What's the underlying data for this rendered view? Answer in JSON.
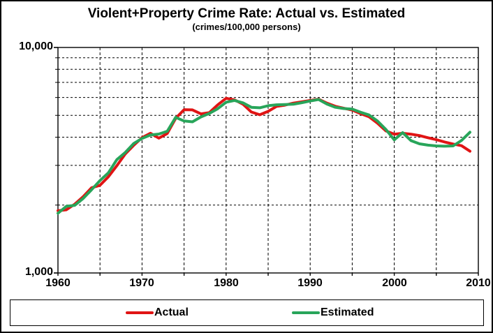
{
  "chart_data": {
    "type": "line",
    "title": "Violent+Property Crime Rate: Actual vs. Estimated",
    "subtitle": "(crimes/100,000 persons)",
    "x": [
      1960,
      1961,
      1962,
      1963,
      1964,
      1965,
      1966,
      1967,
      1968,
      1969,
      1970,
      1971,
      1972,
      1973,
      1974,
      1975,
      1976,
      1977,
      1978,
      1979,
      1980,
      1981,
      1982,
      1983,
      1984,
      1985,
      1986,
      1987,
      1988,
      1989,
      1990,
      1991,
      1992,
      1993,
      1994,
      1995,
      1996,
      1997,
      1998,
      1999,
      2000,
      2001,
      2002,
      2003,
      2004,
      2005,
      2006,
      2007,
      2008,
      2009
    ],
    "series": [
      {
        "name": "Actual",
        "color": "#e01414",
        "values": [
          1887,
          1906,
          2020,
          2180,
          2388,
          2449,
          2671,
          2990,
          3370,
          3680,
          3985,
          4165,
          3961,
          4154,
          4850,
          5299,
          5287,
          5078,
          5140,
          5566,
          5950,
          5858,
          5604,
          5175,
          5031,
          5207,
          5480,
          5550,
          5664,
          5741,
          5820,
          5898,
          5660,
          5484,
          5374,
          5276,
          5088,
          4927,
          4616,
          4267,
          4125,
          4163,
          4125,
          4067,
          3977,
          3901,
          3808,
          3730,
          3669,
          3466
        ]
      },
      {
        "name": "Estimated",
        "color": "#28a55a",
        "values": [
          1840,
          1975,
          1995,
          2140,
          2340,
          2570,
          2780,
          3180,
          3420,
          3750,
          3950,
          4090,
          4130,
          4250,
          4900,
          4720,
          4680,
          4920,
          5100,
          5350,
          5720,
          5820,
          5680,
          5430,
          5400,
          5520,
          5570,
          5580,
          5600,
          5690,
          5790,
          5880,
          5610,
          5430,
          5360,
          5330,
          5160,
          5020,
          4720,
          4330,
          3890,
          4190,
          3860,
          3740,
          3690,
          3660,
          3650,
          3660,
          3870,
          4210
        ]
      }
    ],
    "x_axis": {
      "min": 1960,
      "max": 2010,
      "tick_values": [
        1960,
        1970,
        1980,
        1990,
        2000,
        2010
      ],
      "tick_labels": [
        "1960",
        "1970",
        "1980",
        "1990",
        "2000",
        "2010"
      ],
      "gridline_step": 5
    },
    "y_axis": {
      "scale": "log",
      "min": 1000,
      "max": 10000,
      "tick_values": [
        10000,
        1000
      ],
      "tick_labels": [
        "10,000",
        "1,000"
      ],
      "gridline_values": [
        2000,
        3000,
        4000,
        5000,
        6000,
        7000,
        8000,
        9000
      ]
    },
    "grid": true,
    "legend_position": "bottom"
  }
}
